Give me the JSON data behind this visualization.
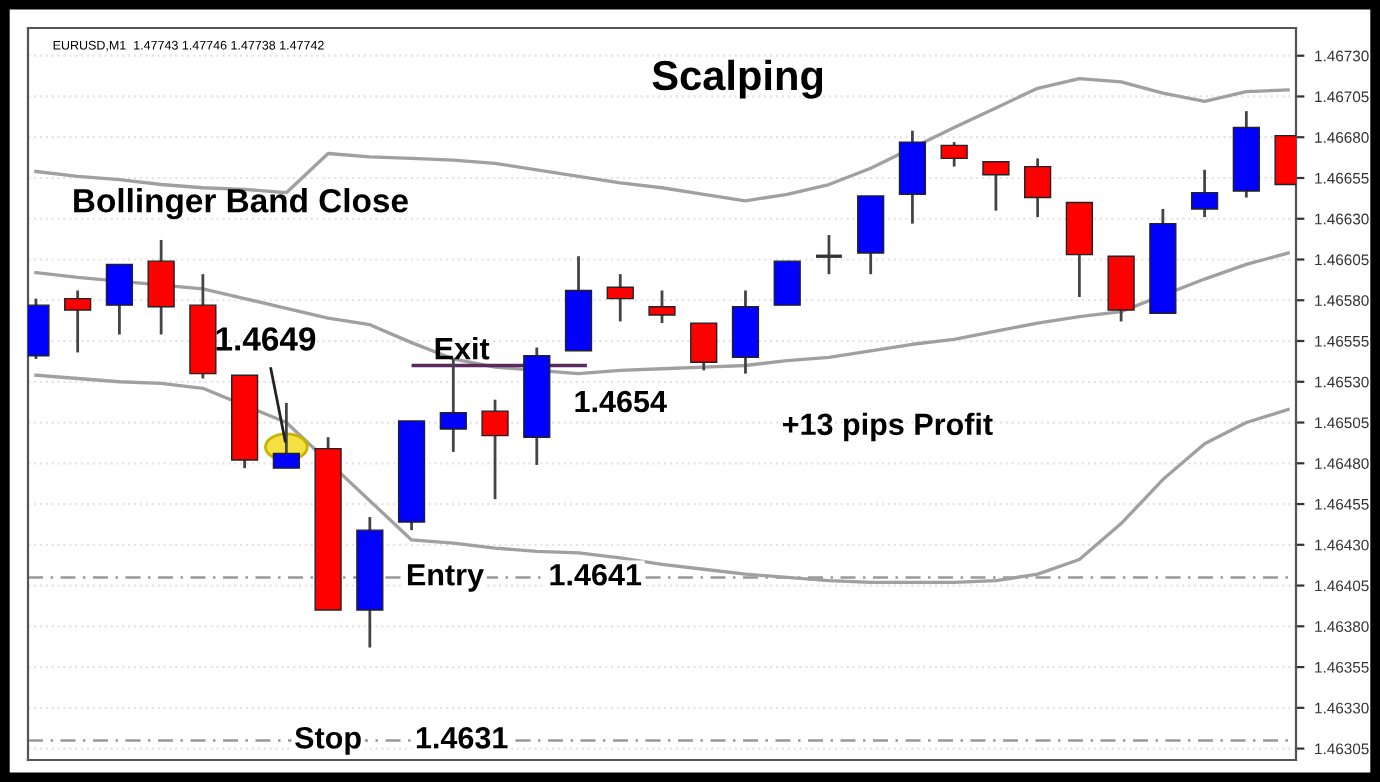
{
  "chart_data": {
    "type": "candlestick",
    "title": "Scalping",
    "categories": [
      null,
      null,
      null,
      null,
      null,
      null,
      null,
      null,
      null,
      null,
      null,
      null,
      null,
      null,
      null,
      null,
      null,
      null,
      null,
      null,
      null,
      null,
      null,
      null,
      null,
      null,
      null,
      null,
      null,
      null,
      null
    ],
    "ohlc": [
      [
        1.46546,
        1.46581,
        1.46544,
        1.46577
      ],
      [
        1.46581,
        1.46586,
        1.46548,
        1.46574
      ],
      [
        1.46577,
        1.46602,
        1.46559,
        1.46602
      ],
      [
        1.46604,
        1.46617,
        1.46559,
        1.46576
      ],
      [
        1.46577,
        1.46596,
        1.46532,
        1.46535
      ],
      [
        1.46534,
        1.46534,
        1.46477,
        1.46482
      ],
      [
        1.46477,
        1.46517,
        1.46477,
        1.46486
      ],
      [
        1.46489,
        1.46496,
        1.4639,
        1.4639
      ],
      [
        1.4639,
        1.46447,
        1.46367,
        1.46439
      ],
      [
        1.46444,
        1.46506,
        1.46439,
        1.46506
      ],
      [
        1.46501,
        1.46544,
        1.46487,
        1.46511
      ],
      [
        1.46512,
        1.46519,
        1.46458,
        1.46497
      ],
      [
        1.46496,
        1.46551,
        1.46479,
        1.46546
      ],
      [
        1.46549,
        1.46607,
        1.46549,
        1.46586
      ],
      [
        1.46588,
        1.46596,
        1.46567,
        1.46581
      ],
      [
        1.46576,
        1.46586,
        1.46566,
        1.46571
      ],
      [
        1.46566,
        1.46566,
        1.46537,
        1.46542
      ],
      [
        1.46545,
        1.46586,
        1.46535,
        1.46576
      ],
      [
        1.46577,
        1.46604,
        1.46577,
        1.46604
      ],
      [
        1.46607,
        1.4662,
        1.46596,
        1.46607
      ],
      [
        1.46609,
        1.46644,
        1.46596,
        1.46644
      ],
      [
        1.46645,
        1.46684,
        1.46627,
        1.46677
      ],
      [
        1.46675,
        1.46677,
        1.46662,
        1.46667
      ],
      [
        1.46665,
        1.46665,
        1.46635,
        1.46657
      ],
      [
        1.46662,
        1.46667,
        1.46631,
        1.46643
      ],
      [
        1.4664,
        1.4664,
        1.46582,
        1.46608
      ],
      [
        1.46607,
        1.46607,
        1.46567,
        1.46574
      ],
      [
        1.46572,
        1.46636,
        1.46572,
        1.46627
      ],
      [
        1.46636,
        1.4666,
        1.46631,
        1.46646
      ],
      [
        1.46647,
        1.46696,
        1.46643,
        1.46686
      ],
      [
        1.46681,
        1.46681,
        1.46651,
        1.46651
      ]
    ],
    "colors": [
      "#0000ff",
      "#ff0000",
      "#0000ff",
      "#ff0000",
      "#ff0000",
      "#ff0000",
      "#0000ff",
      "#ff0000",
      "#0000ff",
      "#0000ff",
      "#0000ff",
      "#ff0000",
      "#0000ff",
      "#0000ff",
      "#ff0000",
      "#ff0000",
      "#ff0000",
      "#0000ff",
      "#0000ff",
      "#333333",
      "#0000ff",
      "#0000ff",
      "#ff0000",
      "#ff0000",
      "#ff0000",
      "#ff0000",
      "#ff0000",
      "#0000ff",
      "#0000ff",
      "#0000ff",
      "#ff0000"
    ],
    "series": [
      {
        "type": "line",
        "color": "#a0a0a0",
        "values": [
          1.46659,
          1.46656,
          1.46654,
          1.46651,
          1.46649,
          1.46648,
          1.46646,
          1.4667,
          1.46668,
          1.46667,
          1.46666,
          1.46664,
          1.4666,
          1.46656,
          1.46652,
          1.46649,
          1.46645,
          1.46641,
          1.46645,
          1.46651,
          1.46661,
          null,
          1.46686,
          1.46698,
          1.4671,
          1.46716,
          1.46714,
          1.46707,
          1.46702,
          1.46708,
          1.46709
        ]
      },
      {
        "type": "line",
        "color": "#a0a0a0",
        "values": [
          1.46597,
          1.46594,
          null,
          null,
          1.46587,
          1.46581,
          1.46575,
          1.46569,
          1.46565,
          1.46554,
          1.46544,
          1.46539,
          null,
          1.46535,
          1.46537,
          1.46538,
          1.46539,
          1.4654,
          1.46543,
          1.46545,
          1.46549,
          1.46553,
          1.46556,
          1.46561,
          1.46566,
          1.4657,
          1.46573,
          null,
          1.46593,
          1.46602,
          1.46609
        ]
      },
      {
        "type": "line",
        "color": "#a0a0a0",
        "values": [
          1.46534,
          1.46532,
          1.4653,
          1.46529,
          1.46526,
          null,
          1.46505,
          null,
          null,
          1.46433,
          1.46431,
          1.46428,
          1.46426,
          1.46425,
          1.46422,
          1.46418,
          1.46415,
          1.46412,
          1.4641,
          1.46408,
          1.46407,
          1.46407,
          1.46407,
          1.46408,
          1.46412,
          1.46421,
          1.46443,
          1.4647,
          1.46492,
          1.46505,
          1.46513
        ]
      }
    ],
    "ylim": [
      1.46298,
      1.46747
    ],
    "yticks": [
      {
        "value": 1.4673,
        "label": "1.46730"
      },
      {
        "value": 1.46705,
        "label": "1.46705"
      },
      {
        "value": 1.4668,
        "label": "1.46680"
      },
      {
        "value": 1.46655,
        "label": "1.46655"
      },
      {
        "value": 1.4663,
        "label": "1.46630"
      },
      {
        "value": 1.46605,
        "label": "1.46605"
      },
      {
        "value": 1.4658,
        "label": "1.46580"
      },
      {
        "value": 1.46555,
        "label": "1.46555"
      },
      {
        "value": 1.4653,
        "label": "1.46530"
      },
      {
        "value": 1.46505,
        "label": "1.46505"
      },
      {
        "value": 1.4648,
        "label": "1.46480"
      },
      {
        "value": 1.46455,
        "label": "1.46455"
      },
      {
        "value": 1.4643,
        "label": "1.46430"
      },
      {
        "value": 1.46405,
        "label": "1.46405"
      },
      {
        "value": 1.4638,
        "label": "1.46380"
      },
      {
        "value": 1.46355,
        "label": "1.46355"
      },
      {
        "value": 1.4633,
        "label": "1.46330"
      },
      {
        "value": 1.46305,
        "label": "1.46305"
      }
    ],
    "tick_labels": "y",
    "grid": "y",
    "ref_lines": [
      {
        "axis": "y",
        "value": 1.4654,
        "label": "Exit",
        "color": "#5a2a5a",
        "line_style": "solid"
      },
      {
        "axis": "y",
        "value": 1.4641,
        "label": "Entry",
        "color": "#999999",
        "line_style": "dashed"
      },
      {
        "axis": "y",
        "value": 1.4631,
        "label": "Stop",
        "color": "#999999",
        "line_style": "dashed"
      }
    ],
    "annotations": [
      "EURUSD,M1  1.47743 1.47746 1.47738 1.47742",
      "Bollinger Band Close",
      {
        "text": "1.4649",
        "y": 1.4649
      },
      {
        "text": "1.4654",
        "y": 1.4654
      },
      {
        "text": "1.4641",
        "y": 1.4641
      },
      {
        "text": "1.4631",
        "y": 1.4631
      },
      "+13 pips Profit"
    ]
  }
}
